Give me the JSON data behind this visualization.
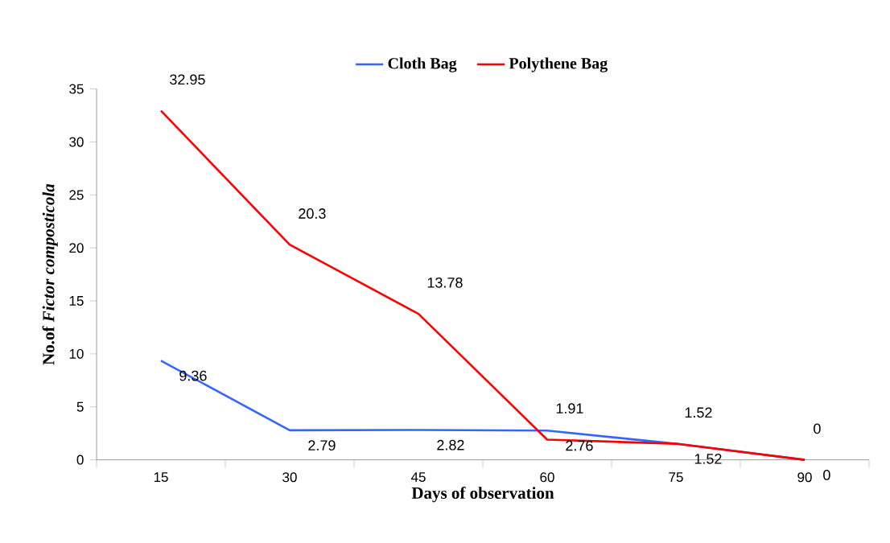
{
  "chart_data": {
    "type": "line",
    "xlabel": "Days of observation",
    "ylabel": "No.of *Fictor composticola*",
    "categories": [
      "15",
      "30",
      "45",
      "60",
      "75",
      "90"
    ],
    "series": [
      {
        "name": "Cloth Bag",
        "color": "#3366ff",
        "values": [
          9.36,
          2.79,
          2.82,
          2.76,
          1.52,
          0
        ]
      },
      {
        "name": "Polythene Bag",
        "color": "#ff0000",
        "values": [
          32.95,
          20.3,
          13.78,
          1.91,
          1.52,
          0
        ]
      }
    ],
    "ylim": [
      0,
      35
    ],
    "yticks": [
      0,
      5,
      10,
      15,
      20,
      25,
      30,
      35
    ],
    "grid": false,
    "legend": "top",
    "marker": "none",
    "line_style": "solid",
    "data_labels": true
  }
}
